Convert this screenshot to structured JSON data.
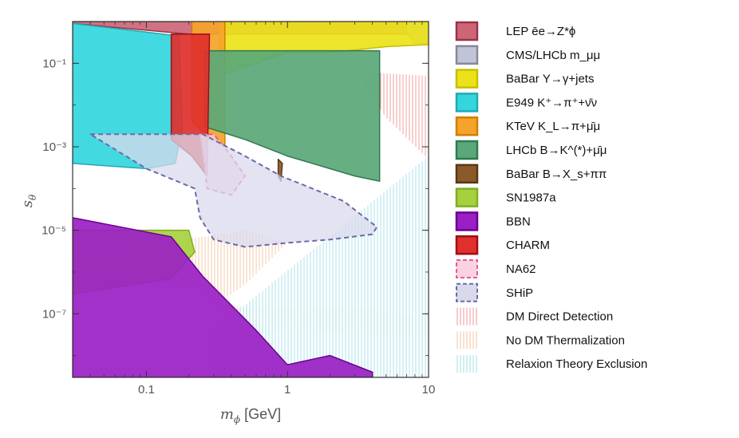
{
  "chart_data": {
    "type": "area",
    "title": "",
    "xlabel": "m_ϕ [GeV]",
    "ylabel": "s_θ",
    "xscale": "log",
    "yscale": "log",
    "xlim": [
      0.03,
      10
    ],
    "ylim": [
      3e-09,
      1
    ],
    "x_ticks": [
      {
        "value": 0.1,
        "label": "0.1"
      },
      {
        "value": 1,
        "label": "1"
      },
      {
        "value": 10,
        "label": "10"
      }
    ],
    "y_ticks": [
      {
        "value": 0.1,
        "label": "10⁻¹"
      },
      {
        "value": 0.001,
        "label": "10⁻³"
      },
      {
        "value": 1e-05,
        "label": "10⁻⁵"
      },
      {
        "value": 1e-07,
        "label": "10⁻⁷"
      }
    ],
    "legend_position": "right",
    "series": [
      {
        "name": "LEP ēe→Z*ϕ",
        "style": "filled",
        "fill": "#cc6677",
        "stroke": "#99334a",
        "points": [
          [
            0.03,
            1
          ],
          [
            0.03,
            0.9
          ],
          [
            0.2,
            0.5
          ],
          [
            0.35,
            0.5
          ],
          [
            0.5,
            0.5
          ],
          [
            10,
            0.5
          ],
          [
            10,
            1
          ]
        ]
      },
      {
        "name": "CMS/LHCb m_μμ",
        "style": "filled",
        "fill": "#c0c4d8",
        "stroke": "#888899",
        "points": [
          [
            7,
            1
          ],
          [
            7,
            0.55
          ],
          [
            8,
            0.3
          ],
          [
            10,
            0.3
          ],
          [
            10,
            1
          ]
        ]
      },
      {
        "name": "BaBar Υ→γ+jets",
        "style": "filled",
        "fill": "#ece21a",
        "stroke": "#c8be00",
        "points": [
          [
            0.33,
            1
          ],
          [
            0.33,
            0.05
          ],
          [
            0.5,
            0.08
          ],
          [
            1,
            0.18
          ],
          [
            2,
            0.18
          ],
          [
            5,
            0.25
          ],
          [
            10,
            0.28
          ],
          [
            10,
            1
          ]
        ]
      },
      {
        "name": "E949 K⁺→π⁺+ν̄ν",
        "style": "filled",
        "fill": "#33d6dd",
        "stroke": "#20aab0",
        "points": [
          [
            0.03,
            0.9
          ],
          [
            0.17,
            0.45
          ],
          [
            0.18,
            0.003
          ],
          [
            0.16,
            0.0004
          ],
          [
            0.1,
            0.0003
          ],
          [
            0.03,
            0.0004
          ]
        ]
      },
      {
        "name": "KTeV K_L→π+μ̄μ",
        "style": "filled",
        "fill": "#f5a32a",
        "stroke": "#d07f00",
        "points": [
          [
            0.21,
            1
          ],
          [
            0.21,
            0.004
          ],
          [
            0.26,
            0.002
          ],
          [
            0.36,
            0.001
          ],
          [
            0.36,
            1
          ]
        ]
      },
      {
        "name": "LHCb B→K^(*)+μ̄μ",
        "style": "filled",
        "fill": "#5aa878",
        "stroke": "#2f7a4e",
        "points": [
          [
            0.26,
            0.2
          ],
          [
            0.26,
            0.003
          ],
          [
            0.5,
            0.0015
          ],
          [
            1,
            0.0006
          ],
          [
            2,
            0.0003
          ],
          [
            3,
            0.0002
          ],
          [
            4.5,
            0.00015
          ],
          [
            4.5,
            0.2
          ]
        ]
      },
      {
        "name": "BaBar B→X_s+ππ",
        "style": "filled",
        "fill": "#8a5a2b",
        "stroke": "#5a3714",
        "points": [
          [
            0.86,
            0.0005
          ],
          [
            0.86,
            0.0002
          ],
          [
            0.9,
            0.00015
          ],
          [
            0.92,
            0.0004
          ]
        ]
      },
      {
        "name": "SN1987a",
        "style": "filled",
        "fill": "#a6d13f",
        "stroke": "#7fae1f",
        "points": [
          [
            0.03,
            1e-05
          ],
          [
            0.2,
            1e-05
          ],
          [
            0.22,
            3e-06
          ],
          [
            0.15,
            7e-07
          ],
          [
            0.03,
            3e-07
          ]
        ]
      },
      {
        "name": "BBN",
        "style": "filled",
        "fill": "#9a1fc4",
        "stroke": "#6a008e",
        "points": [
          [
            0.03,
            2e-05
          ],
          [
            0.15,
            7e-06
          ],
          [
            0.25,
            8e-07
          ],
          [
            0.6,
            4e-08
          ],
          [
            1,
            6e-09
          ],
          [
            2,
            1e-08
          ],
          [
            4,
            4e-09
          ],
          [
            4,
            3e-09
          ],
          [
            0.03,
            3e-09
          ]
        ]
      },
      {
        "name": "CHARM",
        "style": "filled",
        "fill": "#e0302d",
        "stroke": "#9e0f14",
        "points": [
          [
            0.15,
            0.5
          ],
          [
            0.15,
            0.0015
          ],
          [
            0.21,
            0.0006
          ],
          [
            0.27,
            0.0002
          ],
          [
            0.28,
            0.5
          ]
        ]
      },
      {
        "name": "NA62",
        "style": "dashed",
        "fill": "#fad2e2",
        "stroke": "#e75b97",
        "points": [
          [
            0.24,
            0.002
          ],
          [
            0.3,
            0.002
          ],
          [
            0.4,
            0.0006
          ],
          [
            0.5,
            0.0002
          ],
          [
            0.4,
            7e-05
          ],
          [
            0.27,
            0.0001
          ]
        ]
      },
      {
        "name": "SHiP",
        "style": "dashed",
        "fill": "#d9d9ec",
        "stroke": "#6b6aaa",
        "points": [
          [
            0.04,
            0.002
          ],
          [
            0.25,
            0.002
          ],
          [
            0.5,
            0.0006
          ],
          [
            0.9,
            0.0002
          ],
          [
            1.5,
            0.0001
          ],
          [
            2.5,
            5e-05
          ],
          [
            4.3,
            1.2e-05
          ],
          [
            4,
            8e-06
          ],
          [
            2,
            6e-06
          ],
          [
            1,
            5e-06
          ],
          [
            0.5,
            4e-06
          ],
          [
            0.3,
            6e-06
          ],
          [
            0.24,
            2e-05
          ],
          [
            0.22,
            0.0001
          ],
          [
            0.1,
            0.0003
          ]
        ]
      },
      {
        "name": "DM Direct Detection",
        "style": "hatched",
        "stroke": "#f19494",
        "points": [
          [
            3.5,
            0.05
          ],
          [
            4,
            0.06
          ],
          [
            10,
            0.05
          ],
          [
            10,
            0.0005
          ],
          [
            5,
            0.005
          ],
          [
            3.5,
            0.03
          ]
        ]
      },
      {
        "name": "No DM Thermalization",
        "style": "hatched",
        "stroke": "#f2c4a0",
        "points": [
          [
            0.03,
            2.2e-06
          ],
          [
            0.5,
            1e-05
          ],
          [
            1,
            5e-06
          ],
          [
            0.5,
            5e-07
          ],
          [
            0.3,
            1.5e-07
          ],
          [
            1,
            1.5e-07
          ],
          [
            3,
            1.5e-07
          ],
          [
            10,
            8e-08
          ],
          [
            10,
            3e-08
          ],
          [
            4,
            3e-08
          ],
          [
            1,
            5e-08
          ],
          [
            0.5,
            2e-08
          ],
          [
            0.25,
            4e-07
          ],
          [
            0.03,
            1.5e-06
          ]
        ]
      },
      {
        "name": "Relaxion Theory Exclusion",
        "style": "hatched",
        "stroke": "#9fe0e6",
        "points": [
          [
            0.3,
            4e-08
          ],
          [
            10,
            0.0006
          ],
          [
            10,
            3e-09
          ],
          [
            0.3,
            3e-09
          ]
        ]
      }
    ]
  }
}
